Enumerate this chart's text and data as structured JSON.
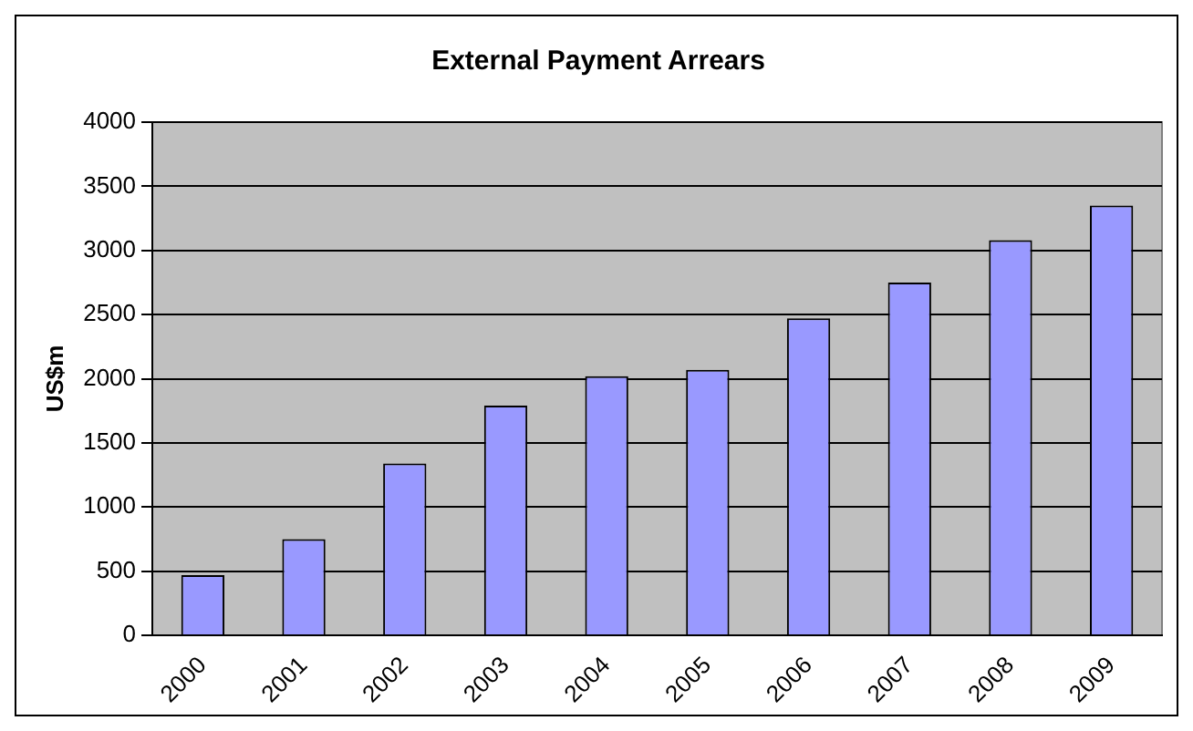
{
  "chart_data": {
    "type": "bar",
    "title": "External Payment Arrears",
    "ylabel": "US$m",
    "categories": [
      "2000",
      "2001",
      "2002",
      "2003",
      "2004",
      "2005",
      "2006",
      "2007",
      "2008",
      "2009"
    ],
    "values": [
      470,
      750,
      1340,
      1790,
      2020,
      2070,
      2470,
      2750,
      3080,
      3350
    ],
    "color": "#9999ff",
    "ylim": [
      0,
      4000
    ],
    "yticks": [
      0,
      500,
      1000,
      1500,
      2000,
      2500,
      3000,
      3500,
      4000
    ],
    "grid": "y",
    "legend": false
  }
}
